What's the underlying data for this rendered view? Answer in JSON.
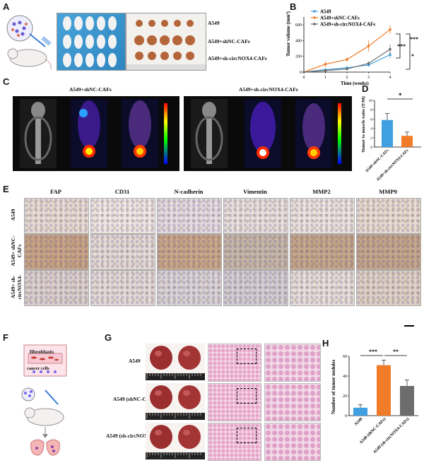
{
  "panels": {
    "A": "A",
    "B": "B",
    "C": "C",
    "D": "D",
    "E": "E",
    "F": "F",
    "G": "G",
    "H": "H"
  },
  "panelA": {
    "groups": [
      "A549",
      "A549+shNC-CAFs",
      "A549+sh-circNOX4-CAFs"
    ]
  },
  "panelB": {
    "legend": [
      "A549",
      "A549+shNC-CAFs",
      "A549+sh-circNOX4-CAFs"
    ],
    "ylabel": "Tumor volume (mm³)",
    "xlabel": "Time (weeks)",
    "sig1": "***",
    "sig2": "***",
    "sig3": "*"
  },
  "panelC": {
    "left_title": "A549+shNC-CAFs",
    "right_title": "A549+sh-circNOX4-CAFs"
  },
  "panelD": {
    "ylabel": "Tumor to muscle ratio (T/M)",
    "sig": "*"
  },
  "panelE": {
    "markers": [
      "FAP",
      "CD31",
      "N-cadherin",
      "Vimentin",
      "MMP2",
      "MMP9"
    ],
    "rows": [
      "A549",
      "A549+ shNC-CAFs",
      "A549+ sh-circNOX4-CAFs"
    ]
  },
  "panelF": {
    "label_top": "fibroblasts",
    "label_bottom": "cancer cells"
  },
  "panelG": {
    "rows": [
      "A549",
      "A549 (shNC-CAFs)",
      "A549 (sh-circNOX4-CAFs)"
    ]
  },
  "panelH": {
    "ylabel": "Number of tumor nodules",
    "sig1": "***",
    "sig2": "**"
  },
  "colors": {
    "blue": "#3f9fe0",
    "orange": "#f07c2a",
    "gray": "#6d6d6d"
  },
  "chart_data": [
    {
      "type": "line",
      "panel": "B",
      "x": [
        0,
        1,
        2,
        3,
        4
      ],
      "series": [
        {
          "name": "A549",
          "values": [
            0,
            30,
            55,
            90,
            220
          ],
          "err": [
            0,
            10,
            15,
            20,
            45
          ]
        },
        {
          "name": "A549+shNC-CAFs",
          "values": [
            0,
            100,
            160,
            330,
            540
          ],
          "err": [
            0,
            35,
            25,
            70,
            55
          ]
        },
        {
          "name": "A549+sh-circNOX4-CAFs",
          "values": [
            0,
            20,
            40,
            110,
            290
          ],
          "err": [
            0,
            10,
            12,
            25,
            60
          ]
        }
      ],
      "ylim": [
        0,
        700
      ],
      "yticks": [
        0,
        200,
        400,
        600
      ],
      "xticks": [
        0,
        1,
        2,
        3,
        4
      ]
    },
    {
      "type": "bar",
      "panel": "D",
      "categories": [
        "A549+shNC-CAFs",
        "A549+sh-circNOX4-CAFs"
      ],
      "values": [
        5.8,
        2.4
      ],
      "err": [
        1.4,
        0.8
      ],
      "ylim": [
        0,
        10
      ],
      "yticks": [
        0,
        2,
        4,
        6,
        8,
        10
      ]
    },
    {
      "type": "bar",
      "panel": "H",
      "categories": [
        "A549",
        "A549 (shNC-CAFs)",
        "A549 (sh-circNOX4-CAFs)"
      ],
      "values": [
        8,
        51,
        30
      ],
      "err": [
        3,
        5,
        6
      ],
      "ylim": [
        0,
        60
      ],
      "yticks": [
        0,
        20,
        40,
        60
      ]
    }
  ]
}
